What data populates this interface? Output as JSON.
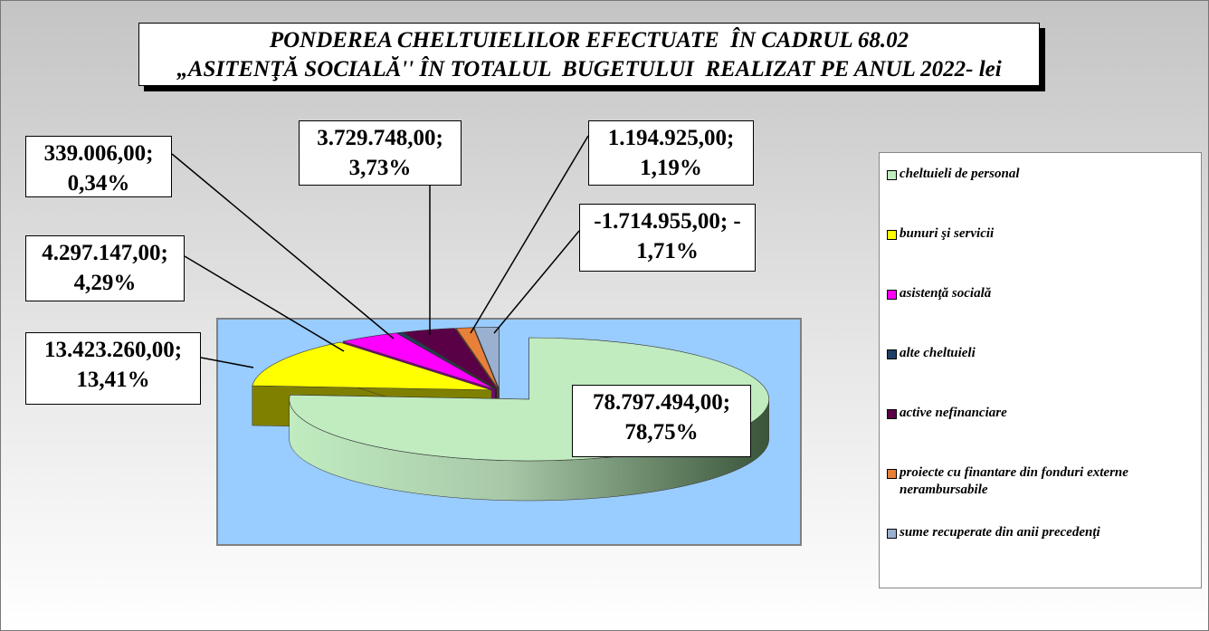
{
  "chart_data": {
    "type": "pie3d",
    "title": [
      "PONDEREA CHELTUIELILOR EFECTUATE  ÎN CADRUL 68.02",
      "„ASITENŢĂ SOCIALĂ'' ÎN TOTALUL  BUGETULUI  REALIZAT PE ANUL 2022- lei"
    ],
    "categories": [
      "cheltuieli de personal",
      "bunuri şi servicii",
      "asistenţă socială",
      "alte cheltuieli",
      "active nefinanciare",
      "proiecte cu finantare din fonduri externe nerambursabile",
      "sume recuperate din anii precedenţi"
    ],
    "values": [
      78797494,
      13423260,
      4297147,
      339006,
      3729748,
      1194925,
      -1714955
    ],
    "value_labels": [
      "78.797.494,00; 78,75%",
      "13.423.260,00; 13,41%",
      "4.297.147,00; 4,29%",
      "339.006,00; 0,34%",
      "3.729.748,00; 3,73%",
      "1.194.925,00; 1,19%",
      "-1.714.955,00; - 1,71%"
    ],
    "colors": [
      "#c0ecc0",
      "#ffff00",
      "#ff00ff",
      "#1f3f66",
      "#5a0046",
      "#e8803a",
      "#9ab0d0"
    ],
    "legend": "right"
  }
}
